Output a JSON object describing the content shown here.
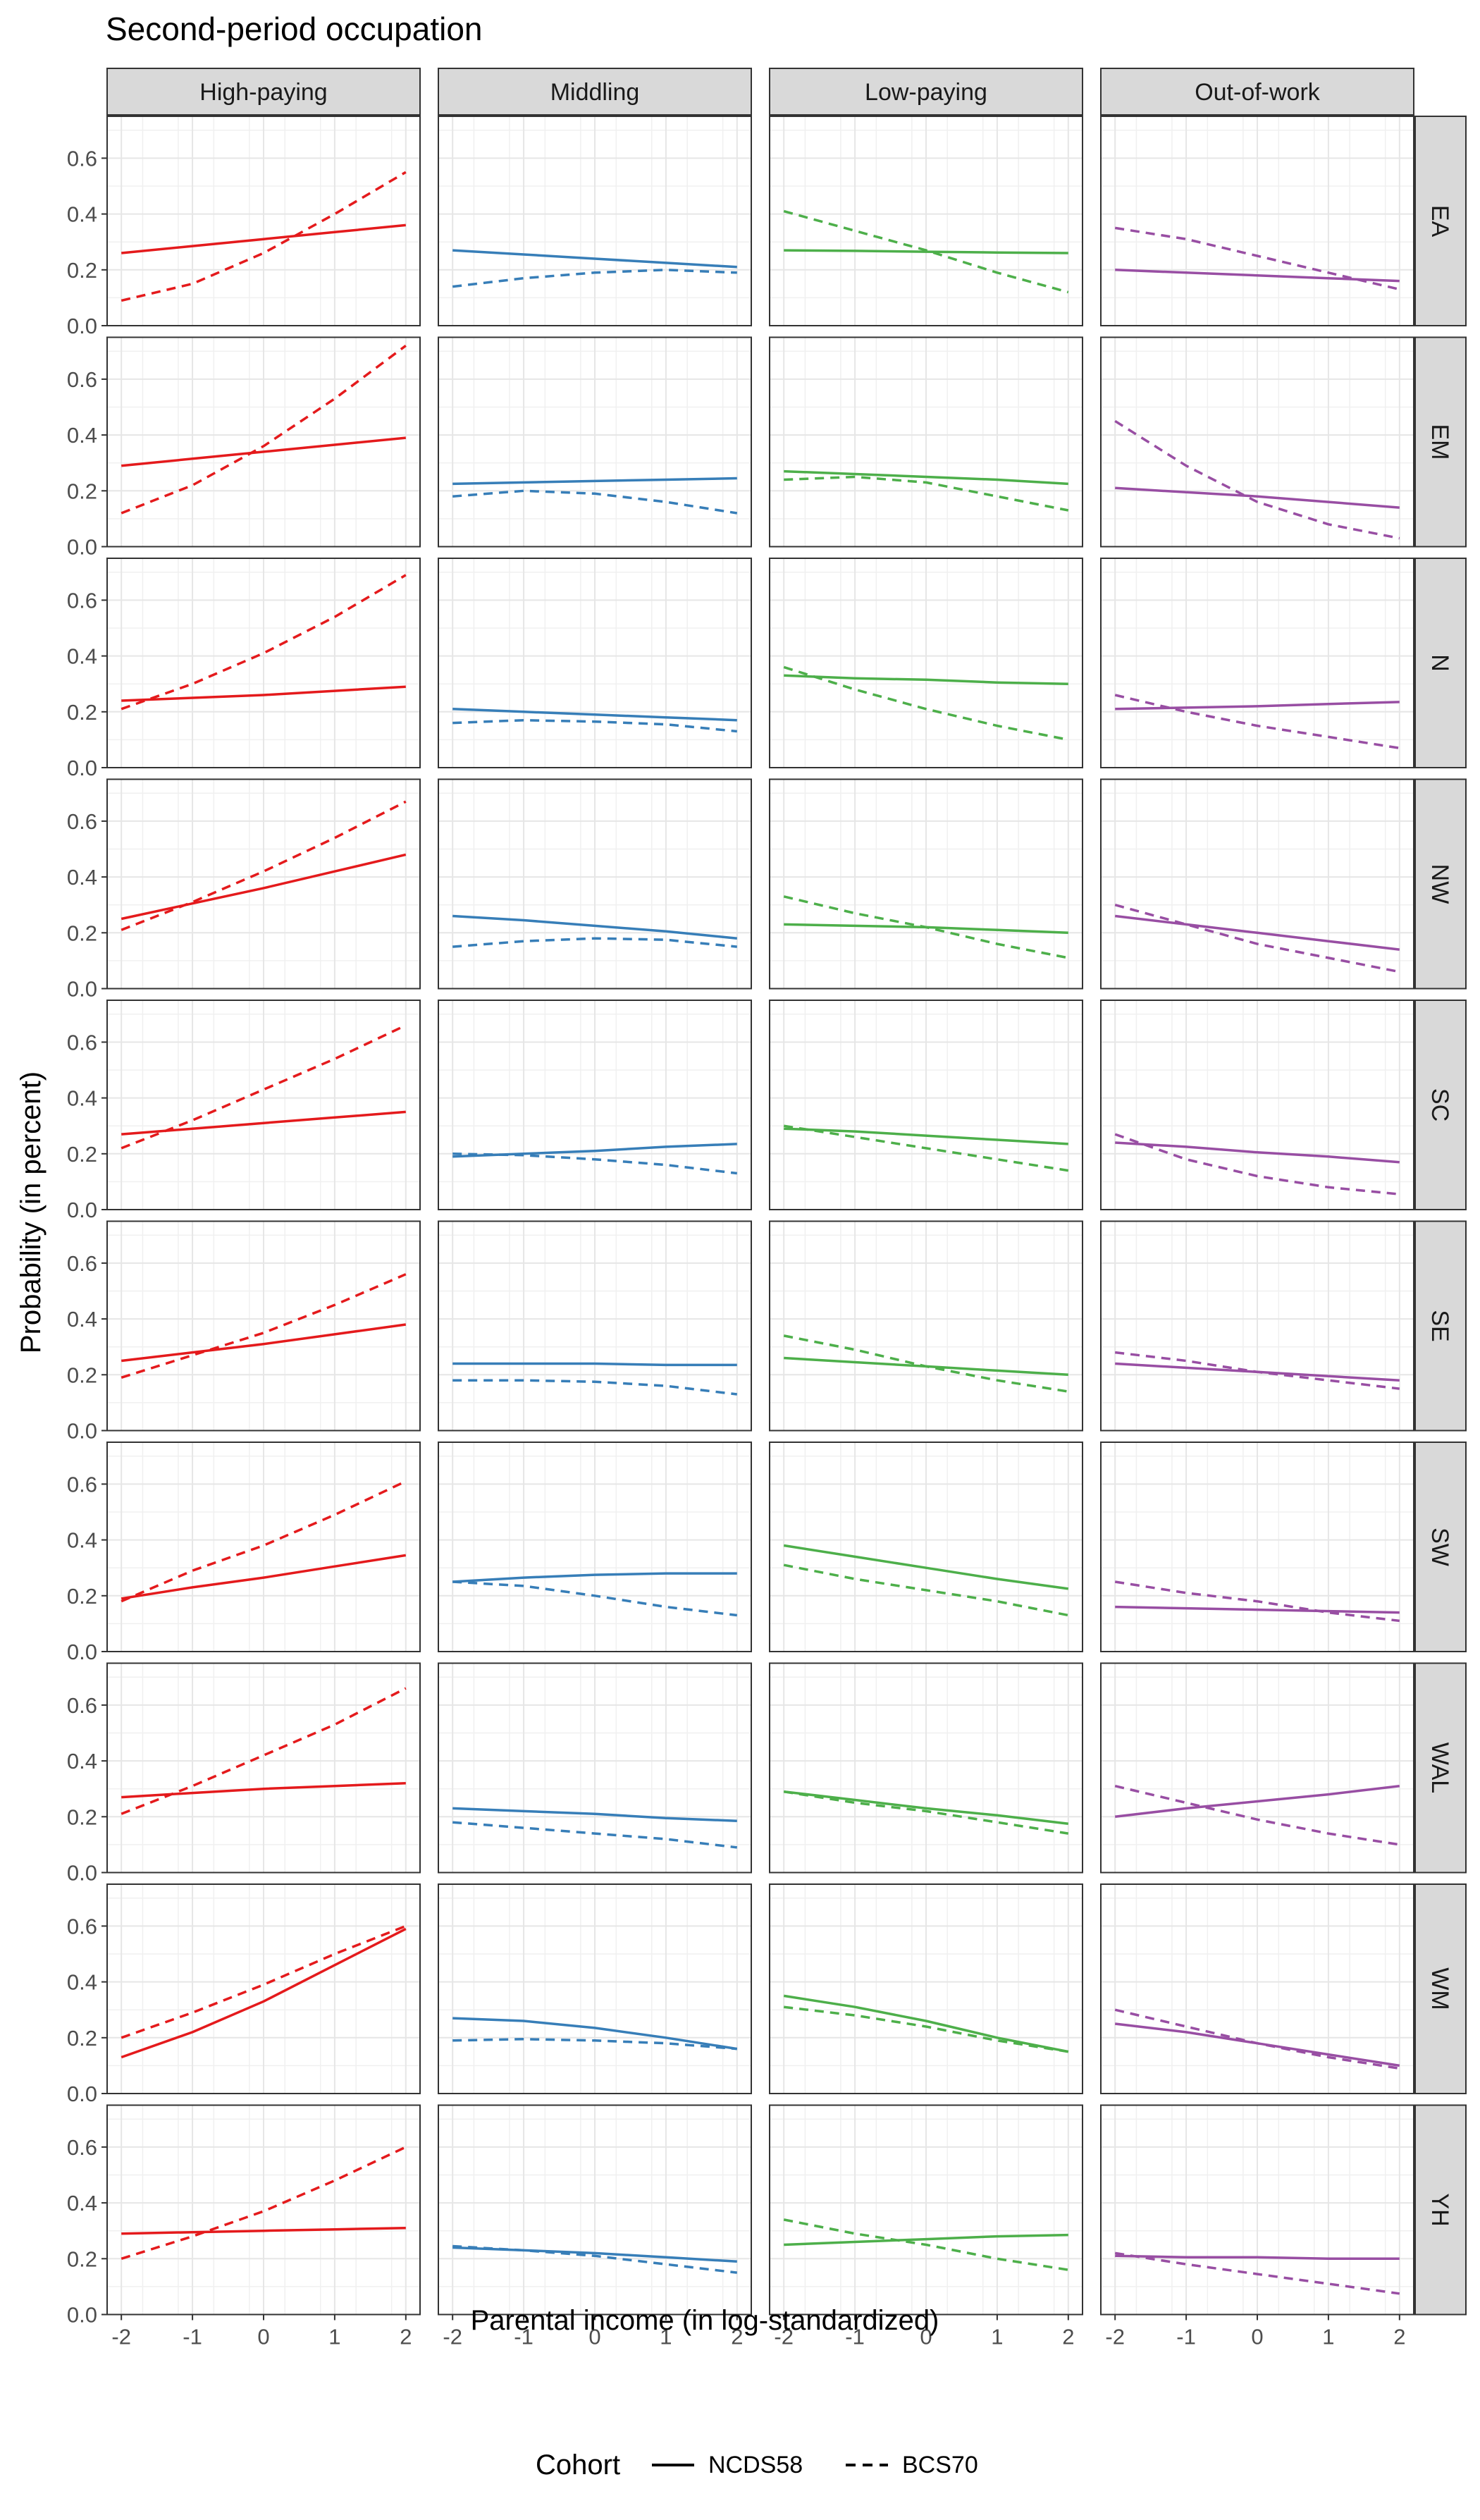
{
  "chart_data": {
    "type": "line",
    "title": "Second-period occupation",
    "xlabel": "Parental income (in log-standardized)",
    "ylabel": "Probability (in percent)",
    "xlim": [
      -2.2,
      2.2
    ],
    "ylim": [
      0,
      0.75
    ],
    "x_ticks": [
      -2,
      -1,
      0,
      1,
      2
    ],
    "x_tick_labels": [
      "-2",
      "-1",
      "0",
      "1",
      "2"
    ],
    "y_ticks": [
      0,
      0.2,
      0.4,
      0.6
    ],
    "y_tick_labels": [
      "0.0",
      "0.2",
      "0.4",
      "0.6"
    ],
    "grid": true,
    "x": [
      -2,
      -1,
      0,
      1,
      2
    ],
    "facet_columns": [
      {
        "label": "High-paying",
        "color": "#E41A1C"
      },
      {
        "label": "Middling",
        "color": "#377EB8"
      },
      {
        "label": "Low-paying",
        "color": "#4DAF4A"
      },
      {
        "label": "Out-of-work",
        "color": "#984EA3"
      }
    ],
    "facet_rows": [
      "EA",
      "EM",
      "N",
      "NW",
      "SC",
      "SE",
      "SW",
      "WAL",
      "WM",
      "YH"
    ],
    "legend": {
      "title": "Cohort",
      "position": "bottom",
      "entries": [
        {
          "name": "NCDS58",
          "linetype": "solid"
        },
        {
          "name": "BCS70",
          "linetype": "dashed"
        }
      ]
    },
    "panels": {
      "EA": {
        "High-paying": {
          "NCDS58": [
            0.26,
            0.285,
            0.31,
            0.335,
            0.36
          ],
          "BCS70": [
            0.09,
            0.15,
            0.26,
            0.4,
            0.55
          ]
        },
        "Middling": {
          "NCDS58": [
            0.27,
            0.255,
            0.24,
            0.225,
            0.21
          ],
          "BCS70": [
            0.14,
            0.17,
            0.19,
            0.2,
            0.19
          ]
        },
        "Low-paying": {
          "NCDS58": [
            0.27,
            0.268,
            0.265,
            0.262,
            0.26
          ],
          "BCS70": [
            0.41,
            0.34,
            0.27,
            0.19,
            0.12
          ]
        },
        "Out-of-work": {
          "NCDS58": [
            0.2,
            0.19,
            0.18,
            0.17,
            0.16
          ],
          "BCS70": [
            0.35,
            0.31,
            0.25,
            0.19,
            0.13
          ]
        }
      },
      "EM": {
        "High-paying": {
          "NCDS58": [
            0.29,
            0.315,
            0.34,
            0.365,
            0.39
          ],
          "BCS70": [
            0.12,
            0.22,
            0.36,
            0.53,
            0.72
          ]
        },
        "Middling": {
          "NCDS58": [
            0.225,
            0.23,
            0.235,
            0.24,
            0.245
          ],
          "BCS70": [
            0.18,
            0.2,
            0.19,
            0.16,
            0.12
          ]
        },
        "Low-paying": {
          "NCDS58": [
            0.27,
            0.26,
            0.25,
            0.24,
            0.225
          ],
          "BCS70": [
            0.24,
            0.25,
            0.23,
            0.18,
            0.13
          ]
        },
        "Out-of-work": {
          "NCDS58": [
            0.21,
            0.195,
            0.18,
            0.16,
            0.14
          ],
          "BCS70": [
            0.45,
            0.29,
            0.16,
            0.08,
            0.03
          ]
        }
      },
      "N": {
        "High-paying": {
          "NCDS58": [
            0.24,
            0.25,
            0.26,
            0.275,
            0.29
          ],
          "BCS70": [
            0.21,
            0.3,
            0.41,
            0.54,
            0.69
          ]
        },
        "Middling": {
          "NCDS58": [
            0.21,
            0.2,
            0.19,
            0.18,
            0.17
          ],
          "BCS70": [
            0.16,
            0.17,
            0.165,
            0.155,
            0.13
          ]
        },
        "Low-paying": {
          "NCDS58": [
            0.33,
            0.32,
            0.315,
            0.305,
            0.3
          ],
          "BCS70": [
            0.36,
            0.28,
            0.21,
            0.15,
            0.1
          ]
        },
        "Out-of-work": {
          "NCDS58": [
            0.21,
            0.215,
            0.22,
            0.228,
            0.235
          ],
          "BCS70": [
            0.26,
            0.2,
            0.15,
            0.11,
            0.07
          ]
        }
      },
      "NW": {
        "High-paying": {
          "NCDS58": [
            0.25,
            0.305,
            0.36,
            0.42,
            0.48
          ],
          "BCS70": [
            0.21,
            0.31,
            0.42,
            0.54,
            0.67
          ]
        },
        "Middling": {
          "NCDS58": [
            0.26,
            0.245,
            0.225,
            0.205,
            0.18
          ],
          "BCS70": [
            0.15,
            0.17,
            0.18,
            0.175,
            0.15
          ]
        },
        "Low-paying": {
          "NCDS58": [
            0.23,
            0.225,
            0.22,
            0.21,
            0.2
          ],
          "BCS70": [
            0.33,
            0.27,
            0.22,
            0.16,
            0.11
          ]
        },
        "Out-of-work": {
          "NCDS58": [
            0.26,
            0.23,
            0.2,
            0.17,
            0.14
          ],
          "BCS70": [
            0.3,
            0.23,
            0.16,
            0.11,
            0.06
          ]
        }
      },
      "SC": {
        "High-paying": {
          "NCDS58": [
            0.27,
            0.29,
            0.31,
            0.33,
            0.35
          ],
          "BCS70": [
            0.22,
            0.32,
            0.43,
            0.54,
            0.66
          ]
        },
        "Middling": {
          "NCDS58": [
            0.19,
            0.2,
            0.21,
            0.225,
            0.235
          ],
          "BCS70": [
            0.2,
            0.195,
            0.18,
            0.16,
            0.13
          ]
        },
        "Low-paying": {
          "NCDS58": [
            0.29,
            0.28,
            0.265,
            0.25,
            0.235
          ],
          "BCS70": [
            0.3,
            0.26,
            0.22,
            0.18,
            0.14
          ]
        },
        "Out-of-work": {
          "NCDS58": [
            0.24,
            0.225,
            0.205,
            0.19,
            0.17
          ],
          "BCS70": [
            0.27,
            0.18,
            0.12,
            0.08,
            0.055
          ]
        }
      },
      "SE": {
        "High-paying": {
          "NCDS58": [
            0.25,
            0.28,
            0.31,
            0.345,
            0.38
          ],
          "BCS70": [
            0.19,
            0.27,
            0.35,
            0.45,
            0.56
          ]
        },
        "Middling": {
          "NCDS58": [
            0.24,
            0.24,
            0.24,
            0.235,
            0.235
          ],
          "BCS70": [
            0.18,
            0.18,
            0.175,
            0.16,
            0.13
          ]
        },
        "Low-paying": {
          "NCDS58": [
            0.26,
            0.245,
            0.23,
            0.215,
            0.2
          ],
          "BCS70": [
            0.34,
            0.29,
            0.23,
            0.18,
            0.14
          ]
        },
        "Out-of-work": {
          "NCDS58": [
            0.24,
            0.225,
            0.21,
            0.195,
            0.18
          ],
          "BCS70": [
            0.28,
            0.25,
            0.21,
            0.18,
            0.15
          ]
        }
      },
      "SW": {
        "High-paying": {
          "NCDS58": [
            0.19,
            0.23,
            0.265,
            0.305,
            0.345
          ],
          "BCS70": [
            0.18,
            0.29,
            0.38,
            0.49,
            0.61
          ]
        },
        "Middling": {
          "NCDS58": [
            0.25,
            0.265,
            0.275,
            0.28,
            0.28
          ],
          "BCS70": [
            0.25,
            0.235,
            0.2,
            0.16,
            0.13
          ]
        },
        "Low-paying": {
          "NCDS58": [
            0.38,
            0.34,
            0.3,
            0.26,
            0.225
          ],
          "BCS70": [
            0.31,
            0.26,
            0.22,
            0.18,
            0.13
          ]
        },
        "Out-of-work": {
          "NCDS58": [
            0.16,
            0.155,
            0.15,
            0.145,
            0.14
          ],
          "BCS70": [
            0.25,
            0.21,
            0.18,
            0.14,
            0.11
          ]
        }
      },
      "WAL": {
        "High-paying": {
          "NCDS58": [
            0.27,
            0.285,
            0.3,
            0.31,
            0.32
          ],
          "BCS70": [
            0.21,
            0.31,
            0.42,
            0.53,
            0.66
          ]
        },
        "Middling": {
          "NCDS58": [
            0.23,
            0.22,
            0.21,
            0.195,
            0.185
          ],
          "BCS70": [
            0.18,
            0.16,
            0.14,
            0.12,
            0.09
          ]
        },
        "Low-paying": {
          "NCDS58": [
            0.29,
            0.26,
            0.23,
            0.205,
            0.175
          ],
          "BCS70": [
            0.29,
            0.25,
            0.22,
            0.18,
            0.14
          ]
        },
        "Out-of-work": {
          "NCDS58": [
            0.2,
            0.23,
            0.255,
            0.28,
            0.31
          ],
          "BCS70": [
            0.31,
            0.25,
            0.19,
            0.14,
            0.1
          ]
        }
      },
      "WM": {
        "High-paying": {
          "NCDS58": [
            0.13,
            0.22,
            0.33,
            0.46,
            0.59
          ],
          "BCS70": [
            0.2,
            0.29,
            0.39,
            0.5,
            0.6
          ]
        },
        "Middling": {
          "NCDS58": [
            0.27,
            0.26,
            0.235,
            0.2,
            0.16
          ],
          "BCS70": [
            0.19,
            0.195,
            0.19,
            0.18,
            0.16
          ]
        },
        "Low-paying": {
          "NCDS58": [
            0.35,
            0.31,
            0.26,
            0.2,
            0.15
          ],
          "BCS70": [
            0.31,
            0.28,
            0.24,
            0.19,
            0.15
          ]
        },
        "Out-of-work": {
          "NCDS58": [
            0.25,
            0.22,
            0.18,
            0.14,
            0.1
          ],
          "BCS70": [
            0.3,
            0.24,
            0.18,
            0.13,
            0.09
          ]
        }
      },
      "YH": {
        "High-paying": {
          "NCDS58": [
            0.29,
            0.295,
            0.3,
            0.305,
            0.31
          ],
          "BCS70": [
            0.2,
            0.28,
            0.37,
            0.48,
            0.6
          ]
        },
        "Middling": {
          "NCDS58": [
            0.24,
            0.23,
            0.22,
            0.205,
            0.19
          ],
          "BCS70": [
            0.245,
            0.23,
            0.21,
            0.18,
            0.15
          ]
        },
        "Low-paying": {
          "NCDS58": [
            0.25,
            0.26,
            0.27,
            0.28,
            0.285
          ],
          "BCS70": [
            0.34,
            0.29,
            0.25,
            0.2,
            0.16
          ]
        },
        "Out-of-work": {
          "NCDS58": [
            0.21,
            0.205,
            0.205,
            0.2,
            0.2
          ],
          "BCS70": [
            0.22,
            0.18,
            0.145,
            0.11,
            0.075
          ]
        }
      }
    }
  }
}
